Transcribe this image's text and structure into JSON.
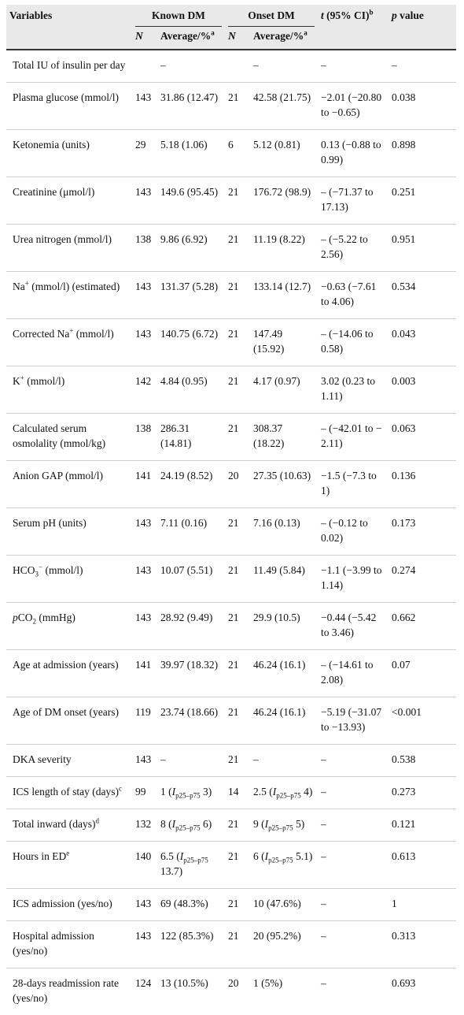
{
  "header": {
    "variables": "Variables",
    "known_dm": "Known DM",
    "onset_dm": "Onset DM",
    "t_label": "t",
    "t_ci": " (95% CI)",
    "t_sup": "b",
    "p_italic": "p",
    "p_rest": " value",
    "n": "N",
    "average": "Average/%",
    "average_sup": "a"
  },
  "rows": [
    {
      "v": "Total IU of insulin per day",
      "n1": "",
      "a1": "–",
      "n2": "",
      "a2": "–",
      "t": "–",
      "p": "–"
    },
    {
      "v": "Plasma glucose (mmol/l)",
      "n1": "143",
      "a1": "31.86 (12.47)",
      "n2": "21",
      "a2": "42.58 (21.75)",
      "t": "−2.01 (−20.80 to −0.65)",
      "p": "0.038"
    },
    {
      "v": "Ketonemia (units)",
      "n1": "29",
      "a1": "5.18 (1.06)",
      "n2": "6",
      "a2": "5.12 (0.81)",
      "t": "0.13 (−0.88 to 0.99)",
      "p": "0.898"
    },
    {
      "v": "Creatinine (μmol/l)",
      "n1": "143",
      "a1": "149.6 (95.45)",
      "n2": "21",
      "a2": "176.72 (98.9)",
      "t": "– (−71.37 to 17.13)",
      "p": "0.251"
    },
    {
      "v": "Urea nitrogen (mmol/l)",
      "n1": "138",
      "a1": "9.86 (6.92)",
      "n2": "21",
      "a2": "11.19 (8.22)",
      "t": "– (−5.22 to 2.56)",
      "p": "0.951"
    },
    {
      "v_pre": "Na",
      "v_sup": "+",
      "v_post": " (mmol/l) (estimated)",
      "n1": "143",
      "a1": "131.37 (5.28)",
      "n2": "21",
      "a2": "133.14 (12.7)",
      "t": "−0.63 (−7.61 to 4.06)",
      "p": "0.534"
    },
    {
      "v_pre": "Corrected Na",
      "v_sup": "+",
      "v_post": " (mmol/l)",
      "n1": "143",
      "a1": "140.75 (6.72)",
      "n2": "21",
      "a2": "147.49 (15.92)",
      "t": "– (−14.06 to 0.58)",
      "p": "0.043"
    },
    {
      "v_pre": "K",
      "v_sup": "+",
      "v_post": " (mmol/l)",
      "n1": "142",
      "a1": "4.84 (0.95)",
      "n2": "21",
      "a2": "4.17 (0.97)",
      "t": "3.02 (0.23 to 1.11)",
      "p": "0.003"
    },
    {
      "v": "Calculated serum osmolality (mmol/kg)",
      "n1": "138",
      "a1": "286.31 (14.81)",
      "n2": "21",
      "a2": "308.37 (18.22)",
      "t": "– (−42.01 to − 2.11)",
      "p": "0.063"
    },
    {
      "v": "Anion GAP (mmol/l)",
      "n1": "141",
      "a1": "24.19 (8.52)",
      "n2": "20",
      "a2": "27.35 (10.63)",
      "t": "−1.5 (−7.3 to 1)",
      "p": "0.136"
    },
    {
      "v": "Serum pH (units)",
      "n1": "143",
      "a1": "7.11 (0.16)",
      "n2": "21",
      "a2": "7.16 (0.13)",
      "t": "– (−0.12 to 0.02)",
      "p": "0.173"
    },
    {
      "v_pre": "HCO",
      "v_sub": "3",
      "v_sup": "−",
      "v_post": " (mmol/l)",
      "n1": "143",
      "a1": "10.07 (5.51)",
      "n2": "21",
      "a2": "11.49 (5.84)",
      "t": "−1.1 (−3.99 to 1.14)",
      "p": "0.274"
    },
    {
      "v_it": "p",
      "v_pre": "CO",
      "v_sub": "2",
      "v_post": " (mmHg)",
      "n1": "143",
      "a1": "28.92 (9.49)",
      "n2": "21",
      "a2": "29.9 (10.5)",
      "t": "−0.44 (−5.42 to 3.46)",
      "p": "0.662"
    },
    {
      "v": "Age at admission (years)",
      "n1": "141",
      "a1": "39.97 (18.32)",
      "n2": "21",
      "a2": "46.24 (16.1)",
      "t": "– (−14.61 to 2.08)",
      "p": "0.07"
    },
    {
      "v": "Age of DM onset (years)",
      "n1": "119",
      "a1": "23.74 (18.66)",
      "n2": "21",
      "a2": "46.24 (16.1)",
      "t": "−5.19 (−31.07 to −13.93)",
      "p": "<0.001"
    },
    {
      "v": "DKA severity",
      "n1": "143",
      "a1": "–",
      "n2": "21",
      "a2": "–",
      "t": "–",
      "p": "0.538"
    },
    {
      "v_pre": "ICS length of stay (days)",
      "v_sup": "c",
      "n1": "99",
      "a1_pre": "1 (",
      "a1_it": "I",
      "a1_sub": "p25–p75",
      "a1_post": " 3)",
      "n2": "14",
      "a2_pre": "2.5 (",
      "a2_it": "I",
      "a2_sub": "p25–p75",
      "a2_post": " 4)",
      "t": "–",
      "p": "0.273"
    },
    {
      "v_pre": "Total inward (days)",
      "v_sup": "d",
      "n1": "132",
      "a1_pre": "8 (",
      "a1_it": "I",
      "a1_sub": "p25–p75",
      "a1_post": " 6)",
      "n2": "21",
      "a2_pre": "9 (",
      "a2_it": "I",
      "a2_sub": "p25–p75",
      "a2_post": " 5)",
      "t": "–",
      "p": "0.121"
    },
    {
      "v_pre": "Hours in ED",
      "v_sup": "e",
      "n1": "140",
      "a1_pre": "6.5 (",
      "a1_it": "I",
      "a1_sub": "p25–p75",
      "a1_post": " 13.7)",
      "n2": "21",
      "a2_pre": "6 (",
      "a2_it": "I",
      "a2_sub": "p25–p75",
      "a2_post": " 5.1)",
      "t": "–",
      "p": "0.613"
    },
    {
      "v": "ICS admission (yes/no)",
      "n1": "143",
      "a1": "69 (48.3%)",
      "n2": "21",
      "a2": "10 (47.6%)",
      "t": "–",
      "p": "1"
    },
    {
      "v": "Hospital admission (yes/no)",
      "n1": "143",
      "a1": "122 (85.3%)",
      "n2": "21",
      "a2": "20 (95.2%)",
      "t": "–",
      "p": "0.313"
    },
    {
      "v": "28-days readmission rate (yes/no)",
      "n1": "124",
      "a1": "13 (10.5%)",
      "n2": "20",
      "a2": "1 (5%)",
      "t": "–",
      "p": "0.693"
    }
  ]
}
